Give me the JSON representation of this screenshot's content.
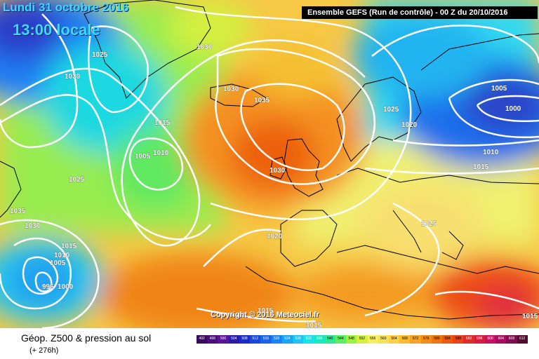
{
  "header": {
    "date": "Lundi 31 octobre 2016",
    "local_time": "13:00 locale",
    "run_info": "Ensemble GEFS  (Run de contrôle)  -  00 Z du 20/10/2016"
  },
  "footer": {
    "title": "Géop. Z500 & pression au sol",
    "forecast_hours": "(+ 276h)",
    "copyright": "Copyright © 2016 Meteociel.fr"
  },
  "legend": {
    "ticks": [
      "492",
      "496",
      "500",
      "504",
      "508",
      "512",
      "516",
      "520",
      "524",
      "528",
      "532",
      "536",
      "540",
      "544",
      "548",
      "552",
      "556",
      "560",
      "564",
      "568",
      "572",
      "576",
      "580",
      "584",
      "588",
      "592",
      "596",
      "600",
      "604",
      "608",
      "612"
    ],
    "colors": [
      "#3a0a5e",
      "#4a0e7a",
      "#5a1496",
      "#2a1aa8",
      "#1a2cc4",
      "#1a48dc",
      "#1a64ec",
      "#1a84f4",
      "#1aa4f8",
      "#1ac4f4",
      "#1ae0e8",
      "#1ae8c0",
      "#30e890",
      "#60ec60",
      "#a0f040",
      "#d4f040",
      "#f4f060",
      "#f8e060",
      "#fcd048",
      "#fcbc30",
      "#f8a420",
      "#f48c18",
      "#f07410",
      "#ec5c10",
      "#e84418",
      "#e02c28",
      "#d81c40",
      "#c81060",
      "#a80c60",
      "#800c50",
      "#500c30"
    ]
  },
  "isobars": [
    "1025",
    "1030",
    "1030",
    "1030",
    "1035",
    "1015",
    "1010",
    "1005",
    "1025",
    "1035",
    "1030",
    "1015",
    "1010",
    "1005",
    "995",
    "1000",
    "1020",
    "1025",
    "1025",
    "1020",
    "1005",
    "1000",
    "1010",
    "1015",
    "1015",
    "1015",
    "1015",
    "1030"
  ]
}
